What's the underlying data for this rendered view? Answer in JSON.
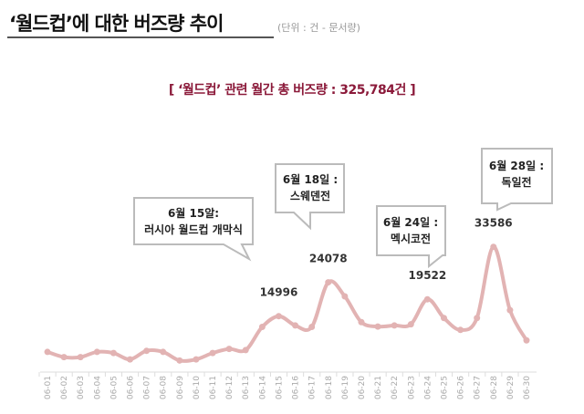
{
  "header": {
    "title": "‘월드컵’에 대한 버즈량 추이",
    "unit_note": "(단위 : 건 - 문서량)"
  },
  "summary": "[ ‘월드컵’ 관련 월간 총 버즈량 : 325,784건 ]",
  "callouts": [
    {
      "line1": "6월 15알:",
      "line2": "러시아 월드컵 개막식"
    },
    {
      "line1": "6월 18일 :",
      "line2": "스웨덴전"
    },
    {
      "line1": "6월 24일 :",
      "line2": "멕시코전"
    },
    {
      "line1": "6월 28일 :",
      "line2": "독일전"
    }
  ],
  "chart_data": {
    "type": "line",
    "title": "",
    "xlabel": "",
    "ylabel": "",
    "color": "#e2b3b3",
    "grid": false,
    "categories": [
      "06-01",
      "06-02",
      "06-03",
      "06-04",
      "06-05",
      "06-06",
      "06-07",
      "06-08",
      "06-09",
      "06-10",
      "06-11",
      "06-12",
      "06-13",
      "06-14",
      "06-15",
      "06-16",
      "06-17",
      "06-18",
      "06-19",
      "06-20",
      "06-21",
      "06-22",
      "06-23",
      "06-24",
      "06-25",
      "06-26",
      "06-27",
      "06-28",
      "06-29",
      "06-30"
    ],
    "values": [
      5400,
      4000,
      4000,
      5400,
      5100,
      3400,
      5700,
      5400,
      3100,
      3400,
      5100,
      6200,
      5900,
      12100,
      14996,
      12500,
      12100,
      24078,
      20300,
      13400,
      12200,
      12500,
      12800,
      19522,
      14500,
      11300,
      14500,
      33586,
      16600,
      8500
    ],
    "data_labels": {
      "14": "14996",
      "17": "24078",
      "23": "19522",
      "27": "33586"
    },
    "ylim": [
      0,
      34000
    ]
  }
}
